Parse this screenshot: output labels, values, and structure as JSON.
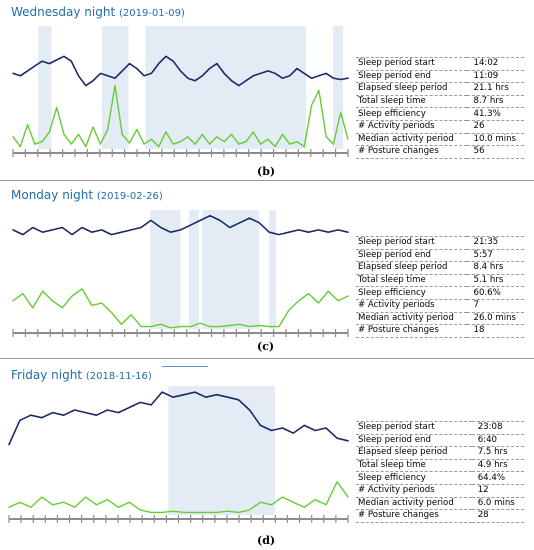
{
  "colors": {
    "activity": "#1b2a66",
    "posture": "#66cc33",
    "shade": "#e3ebf5",
    "axis": "#8c8c8c",
    "title": "#1f6eaa"
  },
  "chart_data": [
    {
      "type": "line",
      "title_night": "Wednesday night",
      "title_date": "(2019-01-09)",
      "sublabel": "(b)",
      "series": [
        {
          "values": [
            0.62,
            0.6,
            0.64,
            0.68,
            0.72,
            0.7,
            0.73,
            0.76,
            0.72,
            0.6,
            0.52,
            0.56,
            0.62,
            0.6,
            0.58,
            0.64,
            0.7,
            0.66,
            0.6,
            0.62,
            0.7,
            0.76,
            0.72,
            0.64,
            0.58,
            0.56,
            0.6,
            0.66,
            0.7,
            0.62,
            0.56,
            0.52,
            0.56,
            0.6,
            0.62,
            0.64,
            0.62,
            0.58,
            0.6,
            0.66,
            0.62,
            0.58,
            0.6,
            0.62,
            0.58,
            0.57,
            0.58
          ]
        },
        {
          "values": [
            0.1,
            0.02,
            0.2,
            0.04,
            0.06,
            0.14,
            0.34,
            0.12,
            0.04,
            0.12,
            0.02,
            0.18,
            0.04,
            0.16,
            0.52,
            0.12,
            0.05,
            0.16,
            0.04,
            0.08,
            0.02,
            0.14,
            0.04,
            0.06,
            0.1,
            0.04,
            0.12,
            0.04,
            0.1,
            0.06,
            0.12,
            0.04,
            0.06,
            0.14,
            0.04,
            0.08,
            0.02,
            0.12,
            0.04,
            0.06,
            0.02,
            0.36,
            0.48,
            0.1,
            0.04,
            0.3,
            0.08
          ]
        }
      ],
      "shaded_intervals": [
        [
          0.075,
          0.115
        ],
        [
          0.265,
          0.345
        ],
        [
          0.395,
          0.875
        ],
        [
          0.955,
          0.985
        ]
      ],
      "stats": [
        {
          "label": "Sleep period start",
          "value": "14:02"
        },
        {
          "label": "Sleep period end",
          "value": "11:09"
        },
        {
          "label": "Elapsed sleep period",
          "value": "21.1 hrs"
        },
        {
          "label": "Total sleep time",
          "value": "8.7 hrs"
        },
        {
          "label": "Sleep efficiency",
          "value": "41.3%"
        },
        {
          "label": "# Activity periods",
          "value": "26"
        },
        {
          "label": "Median activity period",
          "value": "10.0 mins"
        },
        {
          "label": "# Posture changes",
          "value": "56"
        }
      ]
    },
    {
      "type": "line",
      "title_night": "Monday night",
      "title_date": "(2019-02-26)",
      "sublabel": "(c)",
      "series": [
        {
          "values": [
            0.84,
            0.8,
            0.86,
            0.82,
            0.84,
            0.86,
            0.8,
            0.86,
            0.82,
            0.84,
            0.8,
            0.82,
            0.84,
            0.86,
            0.92,
            0.86,
            0.82,
            0.84,
            0.88,
            0.92,
            0.96,
            0.92,
            0.86,
            0.9,
            0.94,
            0.9,
            0.82,
            0.8,
            0.82,
            0.84,
            0.82,
            0.84,
            0.82,
            0.84,
            0.82
          ]
        },
        {
          "values": [
            0.24,
            0.3,
            0.18,
            0.32,
            0.24,
            0.18,
            0.28,
            0.34,
            0.2,
            0.22,
            0.14,
            0.04,
            0.12,
            0.02,
            0.02,
            0.04,
            0.01,
            0.02,
            0.02,
            0.05,
            0.02,
            0.02,
            0.03,
            0.04,
            0.02,
            0.03,
            0.02,
            0.02,
            0.16,
            0.24,
            0.3,
            0.22,
            0.32,
            0.24,
            0.28
          ]
        }
      ],
      "shaded_intervals": [
        [
          0.41,
          0.5
        ],
        [
          0.525,
          0.555
        ],
        [
          0.565,
          0.735
        ],
        [
          0.765,
          0.785
        ]
      ],
      "stats": [
        {
          "label": "Sleep period start",
          "value": "21:35"
        },
        {
          "label": "Sleep period end",
          "value": "5:57"
        },
        {
          "label": "Elapsed sleep period",
          "value": "8.4 hrs"
        },
        {
          "label": "Total sleep time",
          "value": "5.1 hrs"
        },
        {
          "label": "Sleep efficiency",
          "value": "60.6%"
        },
        {
          "label": "# Activity periods",
          "value": "7"
        },
        {
          "label": "Median activity period",
          "value": "26.0 mins"
        },
        {
          "label": "# Posture changes",
          "value": "18"
        }
      ]
    },
    {
      "type": "line",
      "title_night": "Friday night",
      "title_date": "(2018-11-16)",
      "sublabel": "(d)",
      "series": [
        {
          "values": [
            0.55,
            0.74,
            0.78,
            0.76,
            0.8,
            0.78,
            0.82,
            0.8,
            0.78,
            0.82,
            0.8,
            0.84,
            0.88,
            0.86,
            0.96,
            0.92,
            0.94,
            0.96,
            0.92,
            0.94,
            0.92,
            0.9,
            0.82,
            0.7,
            0.66,
            0.68,
            0.64,
            0.7,
            0.66,
            0.68,
            0.6,
            0.58
          ]
        },
        {
          "values": [
            0.06,
            0.1,
            0.06,
            0.14,
            0.08,
            0.1,
            0.06,
            0.14,
            0.08,
            0.12,
            0.06,
            0.1,
            0.04,
            0.02,
            0.02,
            0.03,
            0.02,
            0.02,
            0.02,
            0.02,
            0.03,
            0.02,
            0.04,
            0.1,
            0.08,
            0.14,
            0.1,
            0.06,
            0.12,
            0.08,
            0.26,
            0.14
          ]
        }
      ],
      "shaded_intervals": [
        [
          0.47,
          0.785
        ]
      ],
      "stats": [
        {
          "label": "Sleep period start",
          "value": "23:08"
        },
        {
          "label": "Sleep period end",
          "value": "6:40"
        },
        {
          "label": "Elapsed sleep period",
          "value": "7.5 hrs"
        },
        {
          "label": "Total sleep time",
          "value": "4.9 hrs"
        },
        {
          "label": "Sleep efficiency",
          "value": "64.4%"
        },
        {
          "label": "# Activity periods",
          "value": "12"
        },
        {
          "label": "Median activity period",
          "value": "6.0 mins"
        },
        {
          "label": "# Posture changes",
          "value": "28"
        }
      ]
    }
  ]
}
